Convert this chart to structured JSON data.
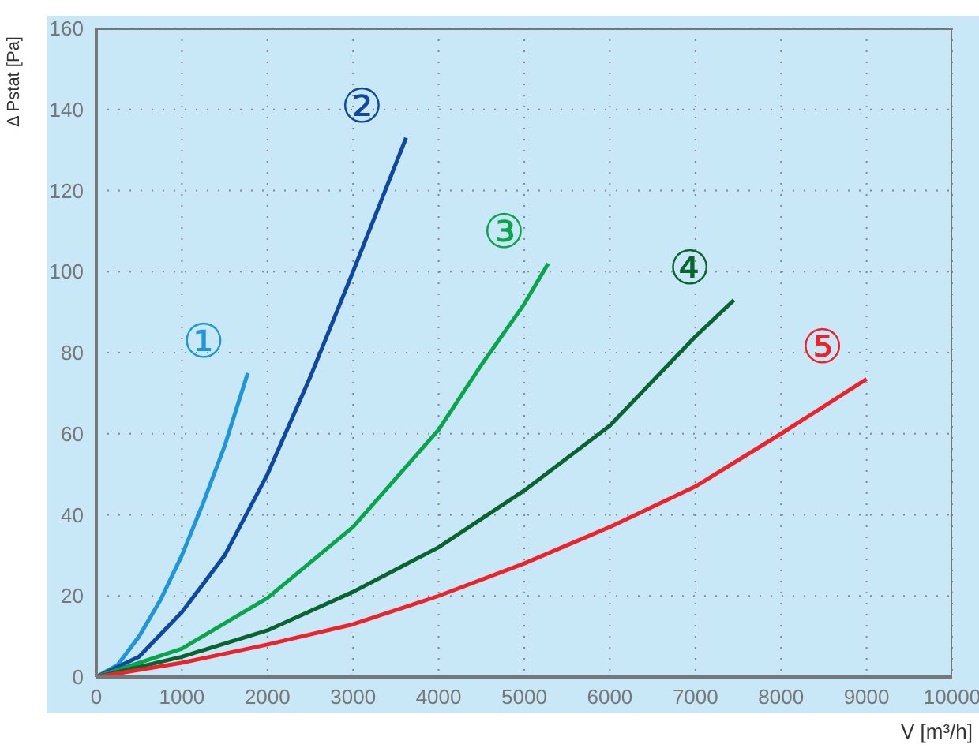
{
  "chart_data": {
    "type": "line",
    "xlabel": "V [m³/h]",
    "ylabel": "Δ Pstat [Pa]",
    "xlim": [
      0,
      10000
    ],
    "xticks": [
      0,
      1000,
      2000,
      3000,
      4000,
      5000,
      6000,
      7000,
      8000,
      9000,
      10000
    ],
    "ylim": [
      0,
      160
    ],
    "yticks": [
      0,
      20,
      40,
      60,
      80,
      100,
      120,
      140,
      160
    ],
    "grid": true,
    "legend": false,
    "marker": "none",
    "line_style": "solid",
    "series": [
      {
        "name": "①",
        "color": "#1e96d8",
        "x": [
          0,
          250,
          500,
          750,
          1000,
          1250,
          1500,
          1770
        ],
        "values": [
          0,
          3,
          10,
          19,
          30,
          43,
          57,
          75
        ]
      },
      {
        "name": "②",
        "color": "#0f48a0",
        "x": [
          0,
          500,
          1000,
          1500,
          2000,
          2500,
          3000,
          3620
        ],
        "values": [
          0,
          5,
          16,
          30,
          50,
          74,
          100,
          133
        ]
      },
      {
        "name": "③",
        "color": "#0aa54a",
        "x": [
          0,
          1000,
          2000,
          3000,
          4000,
          4500,
          5000,
          5280
        ],
        "values": [
          0,
          7,
          19.5,
          37,
          61,
          77,
          92,
          102
        ]
      },
      {
        "name": "④",
        "color": "#0a6430",
        "x": [
          0,
          1000,
          2000,
          3000,
          4000,
          5000,
          6000,
          7000,
          7450
        ],
        "values": [
          0,
          5,
          11.5,
          21,
          32,
          46,
          62,
          84,
          93
        ]
      },
      {
        "name": "⑤",
        "color": "#ee2228",
        "x": [
          0,
          1000,
          2000,
          3000,
          4000,
          5000,
          6000,
          7000,
          8000,
          9000
        ],
        "values": [
          0,
          3.5,
          8,
          13,
          20,
          28,
          37,
          47,
          60,
          73.5
        ]
      }
    ]
  }
}
